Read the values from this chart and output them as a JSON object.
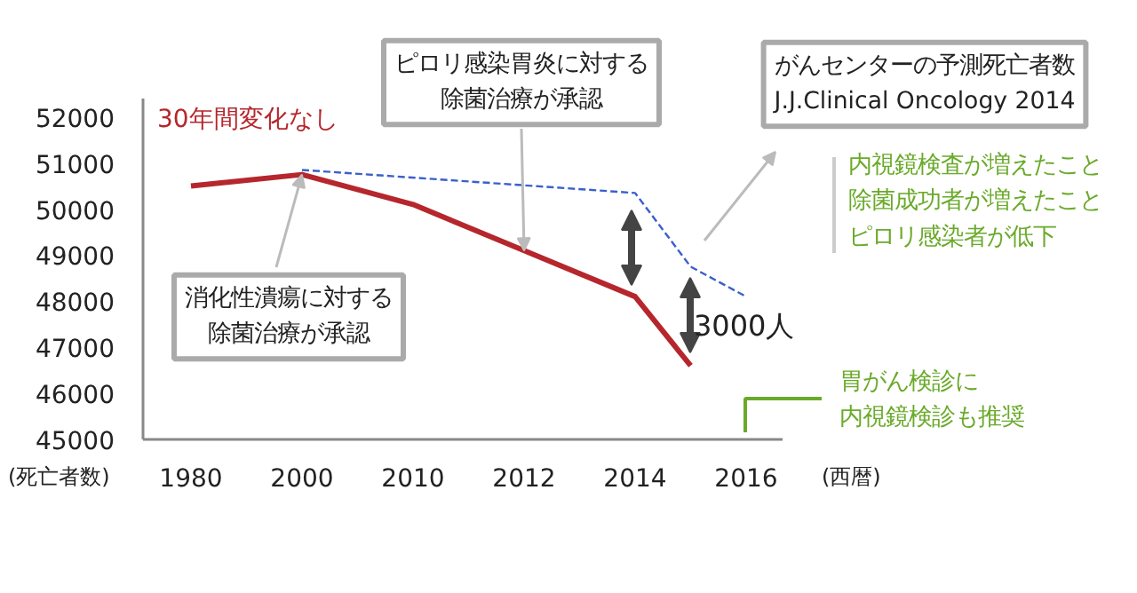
{
  "chart_data": {
    "type": "line",
    "xlabel": "(西暦)",
    "ylabel": "(死亡者数)",
    "categories": [
      "1980",
      null,
      "2000",
      null,
      "2010",
      null,
      "2012",
      null,
      "2014",
      null,
      "2016"
    ],
    "ylim": [
      45000,
      52400
    ],
    "yticks": [
      45000,
      46000,
      47000,
      48000,
      49000,
      50000,
      51000,
      52000
    ],
    "series": [
      {
        "color": "#b5272d",
        "line_style": "solid",
        "values": [
          50500,
          null,
          50750,
          null,
          50100,
          null,
          49100,
          null,
          48100,
          46600,
          null
        ]
      },
      {
        "color": "#3a5fcd",
        "line_style": "dashed",
        "values": [
          null,
          null,
          50850,
          null,
          null,
          null,
          null,
          null,
          50350,
          48750,
          48100
        ]
      }
    ],
    "annotations": [
      "30年間変化なし",
      {
        "text": "ピロリ感染胃炎に対する除菌治療が承認",
        "x": "2012",
        "y": 49100
      },
      {
        "text": "消化性潰瘍に対する除菌治療が承認",
        "x": "2000",
        "y": 50750
      },
      "がんセンターの予測死亡者数\nJ.J.Clinical Oncology 2014",
      "内視鏡検査が増えたこと除菌成功者が増えたことピロリ感染者が低下",
      "3000人",
      "胃がん検診に内視鏡検診も推奨"
    ]
  }
}
